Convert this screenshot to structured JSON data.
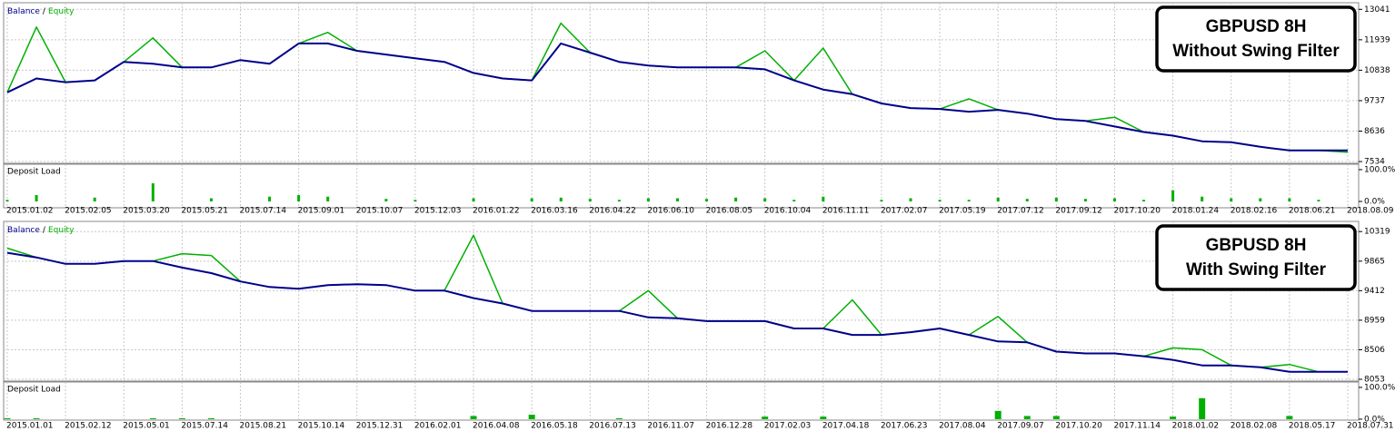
{
  "chart_data": [
    {
      "type": "line",
      "annotation": [
        "GBPUSD 8H",
        "Without Swing Filter"
      ],
      "legend_separator": "/",
      "categories": [
        "2015.01.02",
        null,
        "2015.02.05",
        null,
        "2015.03.20",
        null,
        "2015.05.21",
        null,
        "2015.07.14",
        null,
        "2015.09.01",
        null,
        "2015.10.07",
        null,
        "2015.12.03",
        null,
        "2016.01.22",
        null,
        "2016.03.16",
        null,
        "2016.04.22",
        null,
        "2016.06.10",
        null,
        "2016.08.05",
        null,
        "2016.10.04",
        null,
        "2016.11.11",
        null,
        "2017.02.07",
        null,
        "2017.05.19",
        null,
        "2017.07.12",
        null,
        "2017.09.12",
        null,
        "2017.10.20",
        null,
        "2018.01.24",
        null,
        "2018.02.16",
        null,
        "2018.06.21",
        null,
        "2018.08.09"
      ],
      "series": [
        {
          "name": "Balance",
          "color": "#00008b",
          "values": [
            10038,
            10538,
            10405,
            10471,
            11139,
            11072,
            10939,
            10939,
            11206,
            11072,
            11806,
            11806,
            11539,
            11406,
            11272,
            11139,
            10738,
            10538,
            10471,
            11806,
            11473,
            11139,
            11005,
            10939,
            10939,
            10939,
            10872,
            10471,
            10138,
            9971,
            9637,
            9470,
            9437,
            9337,
            9404,
            9270,
            9070,
            9003,
            8803,
            8603,
            8470,
            8269,
            8236,
            8069,
            7936,
            7936,
            7936
          ]
        },
        {
          "name": "Equity",
          "color": "#00b000",
          "values": [
            10038,
            12400,
            10405,
            10471,
            11139,
            12006,
            10939,
            10939,
            11206,
            11072,
            11806,
            12207,
            11539,
            11406,
            11272,
            11139,
            10738,
            10538,
            10471,
            12540,
            11473,
            11139,
            11005,
            10939,
            10939,
            10939,
            11539,
            10471,
            11639,
            9971,
            9637,
            9470,
            9437,
            9804,
            9404,
            9270,
            9070,
            9003,
            9137,
            8603,
            8470,
            8269,
            8236,
            8069,
            7936,
            7936,
            7870
          ]
        }
      ],
      "ylim": [
        7470,
        13280
      ],
      "yticks": [
        13041,
        11939,
        10838,
        9737,
        8636,
        7534
      ],
      "grid": true,
      "subchart": {
        "type": "bar",
        "title": "Deposit Load",
        "color": "#00b000",
        "values": [
          5,
          20,
          0,
          12,
          0,
          57,
          0,
          10,
          0,
          15,
          20,
          15,
          0,
          8,
          5,
          0,
          10,
          0,
          10,
          12,
          8,
          5,
          10,
          10,
          8,
          12,
          10,
          5,
          15,
          0,
          5,
          10,
          5,
          5,
          12,
          8,
          12,
          8,
          10,
          5,
          35,
          15,
          10,
          10,
          10,
          5,
          0
        ],
        "ylim": [
          -20,
          117
        ],
        "yticks": [
          {
            "value": 100,
            "label": "100.0%"
          },
          {
            "value": 0,
            "label": "0.0%"
          }
        ]
      }
    },
    {
      "type": "line",
      "annotation": [
        "GBPUSD 8H",
        "With Swing Filter"
      ],
      "legend_separator": "/",
      "categories": [
        "2015.01.01",
        null,
        "2015.02.12",
        null,
        "2015.05.01",
        null,
        "2015.07.14",
        null,
        "2015.08.21",
        null,
        "2015.10.14",
        null,
        "2015.12.31",
        null,
        "2016.02.01",
        null,
        "2016.04.08",
        null,
        "2016.05.18",
        null,
        "2016.07.13",
        null,
        "2016.11.07",
        null,
        "2016.12.28",
        null,
        "2017.02.03",
        null,
        "2017.04.18",
        null,
        "2017.06.23",
        null,
        "2017.08.04",
        null,
        "2017.09.07",
        null,
        "2017.10.20",
        null,
        "2017.11.14",
        null,
        "2018.01.02",
        null,
        "2018.02.08",
        null,
        "2018.05.17",
        null,
        "2018.07.31"
      ],
      "series": [
        {
          "name": "Balance",
          "color": "#00008b",
          "values": [
            9993,
            9923,
            9823,
            9823,
            9866,
            9866,
            9767,
            9682,
            9554,
            9469,
            9441,
            9498,
            9512,
            9498,
            9413,
            9413,
            9299,
            9215,
            9101,
            9101,
            9101,
            9101,
            9002,
            8988,
            8945,
            8945,
            8945,
            8832,
            8832,
            8733,
            8733,
            8776,
            8832,
            8733,
            8634,
            8620,
            8478,
            8450,
            8450,
            8407,
            8351,
            8266,
            8266,
            8237,
            8167,
            8167,
            8167
          ]
        },
        {
          "name": "Equity",
          "color": "#00b000",
          "values": [
            10064,
            9923,
            9823,
            9823,
            9866,
            9866,
            9979,
            9951,
            9554,
            9469,
            9441,
            9498,
            9512,
            9498,
            9413,
            9413,
            10262,
            9215,
            9101,
            9101,
            9101,
            9101,
            9413,
            8988,
            8945,
            8945,
            8945,
            8832,
            8832,
            9271,
            8733,
            8776,
            8832,
            8733,
            9016,
            8620,
            8478,
            8450,
            8450,
            8407,
            8535,
            8507,
            8266,
            8237,
            8280,
            8167,
            8167
          ]
        }
      ],
      "ylim": [
        8025,
        10475
      ],
      "yticks": [
        10319,
        9865,
        9412,
        8959,
        8506,
        8053
      ],
      "grid": true,
      "subchart": {
        "type": "bar",
        "title": "Deposit Load",
        "color": "#00b000",
        "values": [
          3,
          3,
          0,
          0,
          0,
          3,
          3,
          3,
          0,
          0,
          0,
          0,
          0,
          0,
          0,
          0,
          10,
          0,
          14,
          0,
          0,
          3,
          0,
          0,
          0,
          0,
          8,
          0,
          8,
          0,
          0,
          0,
          0,
          0,
          26,
          10,
          10,
          0,
          0,
          0,
          8,
          66,
          0,
          0,
          10,
          0,
          0
        ],
        "ylim": [
          -3,
          117
        ],
        "yticks": [
          {
            "value": 100,
            "label": "100.0%"
          },
          {
            "value": 0,
            "label": "0.0%"
          }
        ]
      }
    }
  ]
}
